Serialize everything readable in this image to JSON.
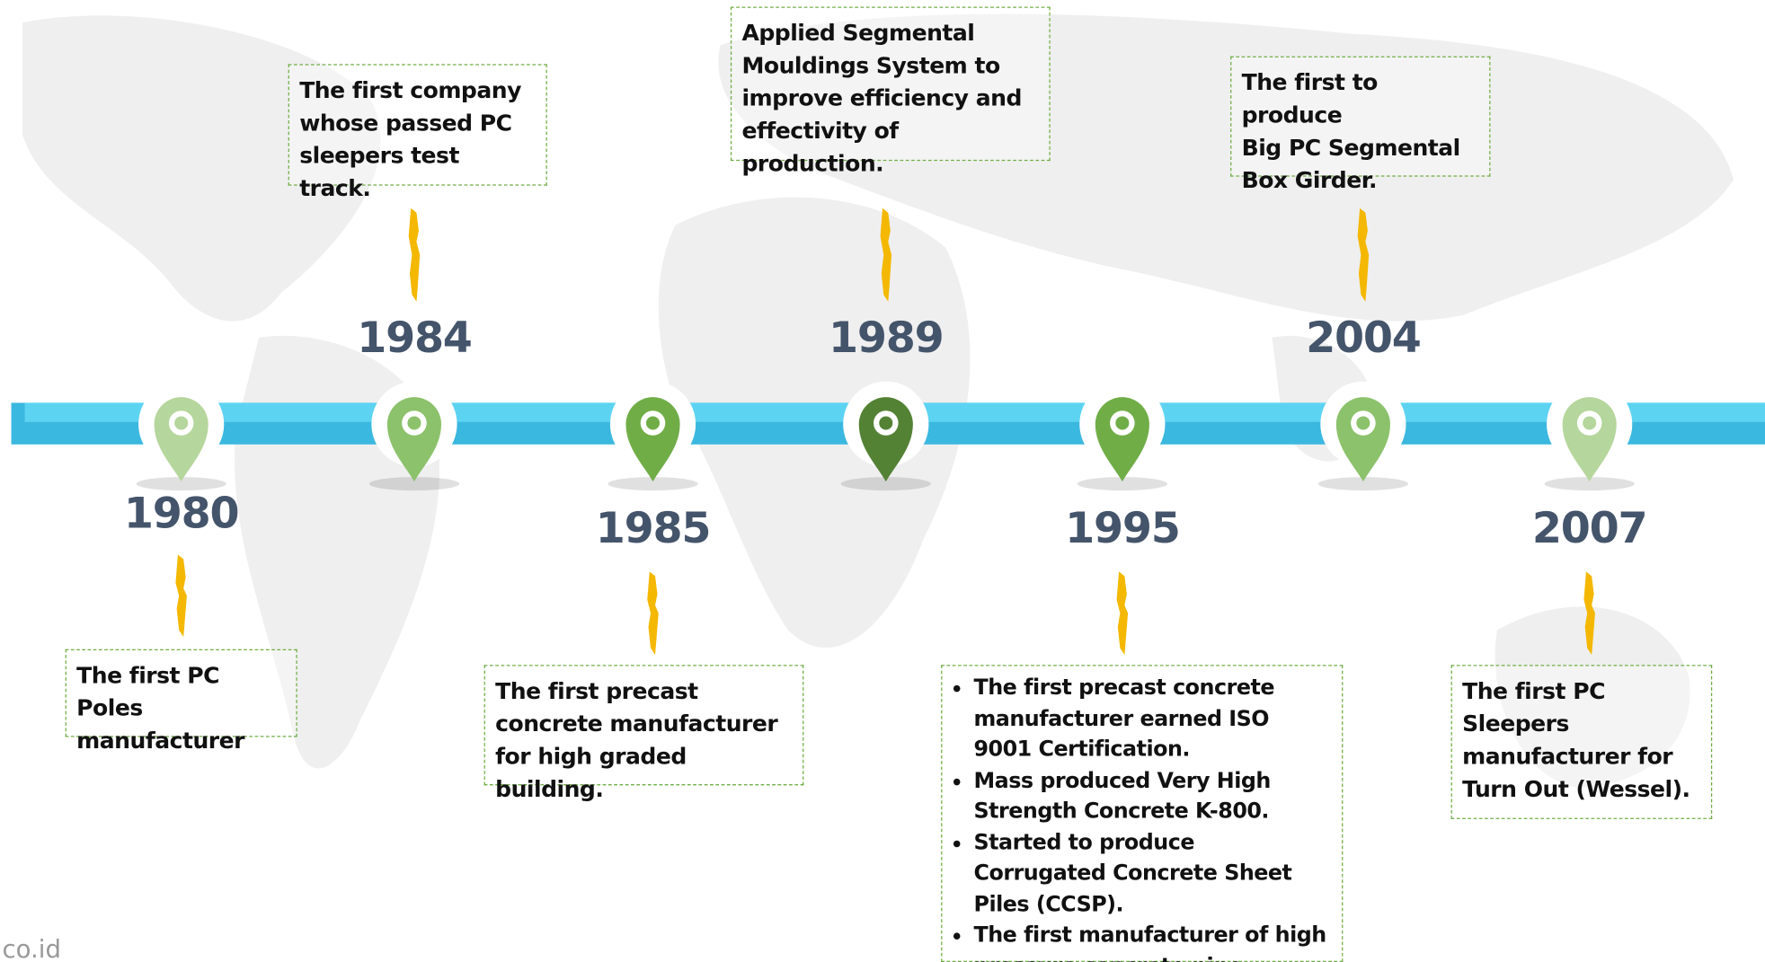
{
  "timeline": {
    "events": [
      {
        "year": "1980",
        "color": "#b5d69c",
        "lines": [
          "The first PC Poles",
          "manufacturer"
        ]
      },
      {
        "year": "1984",
        "color": "#8cc26b",
        "lines": [
          "The first company",
          "whose passed  PC",
          "sleepers test track."
        ]
      },
      {
        "year": "1985",
        "color": "#70ad47",
        "lines": [
          "The first precast",
          "concrete manufacturer",
          "for high graded building."
        ]
      },
      {
        "year": "1989",
        "color": "#548235",
        "lines": [
          "Applied Segmental",
          "Mouldings System to",
          "improve efficiency and",
          "effectivity of production."
        ]
      },
      {
        "year": "1995",
        "color": "#70ad47",
        "bullets": [
          "The first precast concrete manufacturer earned ISO 9001 Certification.",
          "Mass produced Very High Strength Concrete K-800.",
          "Started to produce Corrugated Concrete Sheet Piles (CCSP).",
          "The first manufacturer of high pressure concrete pipe."
        ]
      },
      {
        "year": "2004",
        "color": "#8cc26b",
        "lines": [
          "The first to produce",
          "Big PC Segmental",
          "Box Girder."
        ]
      },
      {
        "year": "2007",
        "color": "#b5d69c",
        "lines": [
          "The first PC",
          "Sleepers",
          "manufacturer for",
          "Turn Out (Wessel)."
        ]
      }
    ],
    "watermark": "co.id"
  }
}
